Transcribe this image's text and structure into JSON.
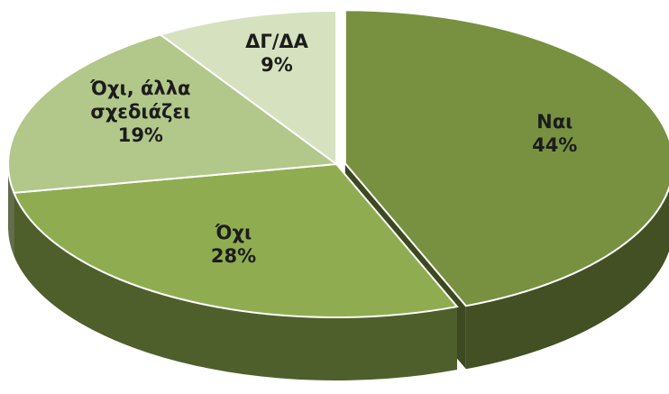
{
  "chart_data": {
    "type": "pie",
    "categories": [
      "Ναι",
      "Όχι",
      "Όχι, άλλα σχεδιάζει",
      "ΔΓ/ΔΑ"
    ],
    "values": [
      44,
      28,
      19,
      9
    ],
    "value_labels": [
      "44%",
      "28%",
      "19%",
      "9%"
    ],
    "colors": [
      "#789141",
      "#8fad50",
      "#b2c78a",
      "#d6e1bf"
    ]
  }
}
